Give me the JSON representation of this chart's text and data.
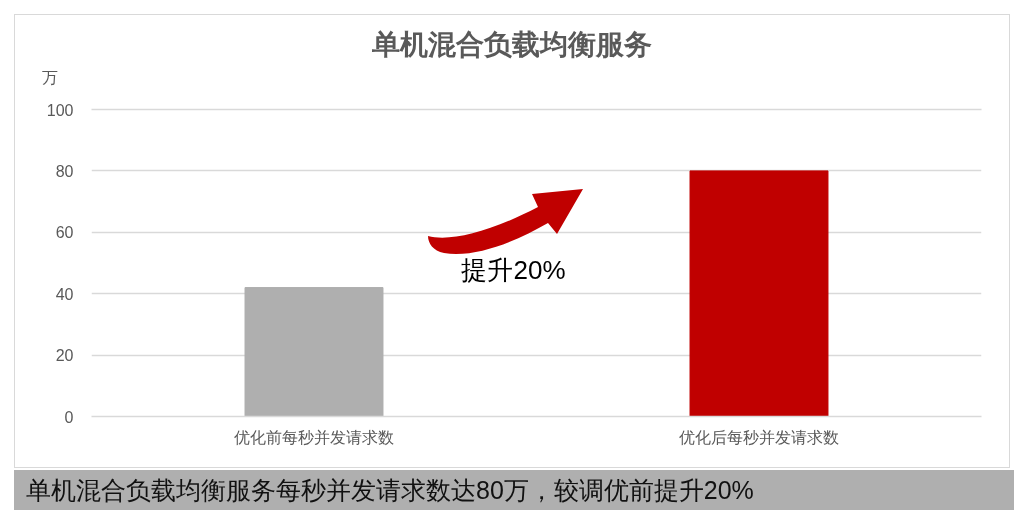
{
  "chart_data": {
    "type": "bar",
    "title": "单机混合负载均衡服务",
    "ylabel": "万",
    "categories": [
      "优化前每秒并发请求数",
      "优化后每秒并发请求数"
    ],
    "values": [
      42,
      80
    ],
    "colors": [
      "#afafaf",
      "#c00000"
    ],
    "ylim": [
      0,
      100
    ],
    "yticks": [
      0,
      20,
      40,
      60,
      80,
      100
    ],
    "grid": "y",
    "annotations": [
      "提升20%",
      "单机混合负载均衡服务每秒并发请求数达80万，较调优前提升20%"
    ]
  }
}
